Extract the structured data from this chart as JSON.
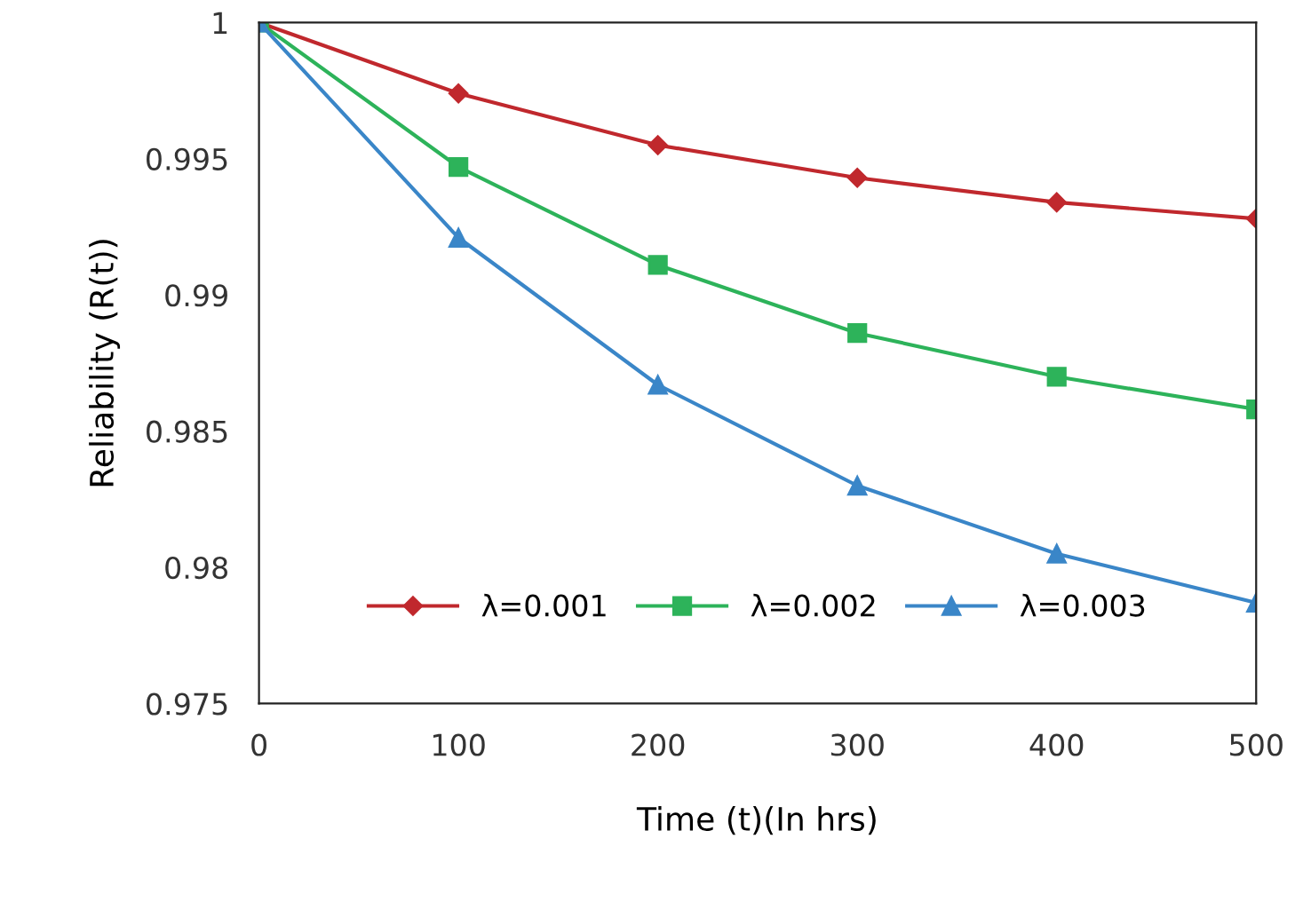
{
  "chart_data": {
    "type": "line",
    "xlabel": "Time (t)(In hrs)",
    "ylabel": "Reliability (R(t))",
    "x": [
      0,
      100,
      200,
      300,
      400,
      500
    ],
    "series": [
      {
        "name": "λ=0.001",
        "color": "#c0282d",
        "marker": "diamond",
        "values": [
          1,
          0.9974,
          0.9955,
          0.9943,
          0.9934,
          0.9928
        ]
      },
      {
        "name": "λ=0.002",
        "color": "#2db35a",
        "marker": "square",
        "values": [
          1,
          0.9947,
          0.9911,
          0.9886,
          0.987,
          0.9858
        ]
      },
      {
        "name": "λ=0.003",
        "color": "#3a86c8",
        "marker": "triangle",
        "values": [
          1,
          0.9921,
          0.9867,
          0.983,
          0.9805,
          0.9787
        ]
      }
    ],
    "xlim": [
      0,
      500
    ],
    "xticks": [
      0,
      100,
      200,
      300,
      400,
      500
    ],
    "ylim": [
      0.975,
      1
    ],
    "yticks": [
      0.975,
      0.98,
      0.985,
      0.99,
      0.995,
      1
    ],
    "grid": false,
    "legend": "bottom",
    "line_style": "solid"
  }
}
